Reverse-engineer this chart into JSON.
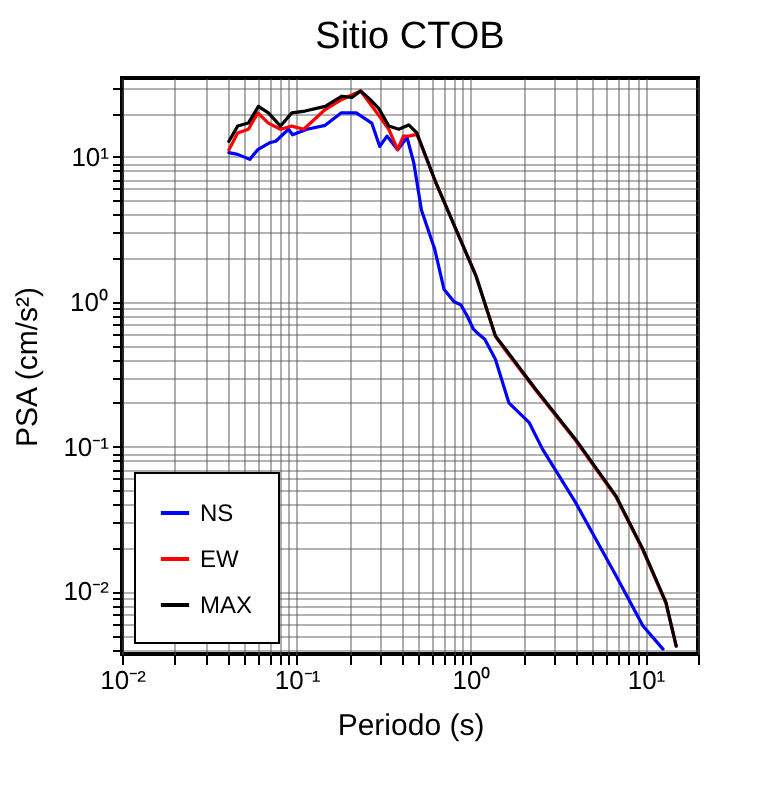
{
  "chart_data": {
    "type": "line",
    "title": "Sitio CTOB",
    "xlabel": "Periodo (s)",
    "ylabel": "PSA (cm/s²)",
    "log": "xy",
    "grid": true,
    "legend": "bottom left",
    "xlim": [
      0.01,
      20
    ],
    "ylim": [
      0.0037,
      35
    ],
    "xticks": [
      {
        "value": 0.01,
        "label": "10⁻²"
      },
      {
        "value": 0.02,
        "label": null
      },
      {
        "value": 0.03,
        "label": null
      },
      {
        "value": 0.04,
        "label": null
      },
      {
        "value": 0.05,
        "label": null
      },
      {
        "value": 0.06,
        "label": null
      },
      {
        "value": 0.07,
        "label": null
      },
      {
        "value": 0.08,
        "label": null
      },
      {
        "value": 0.09,
        "label": null
      },
      {
        "value": 0.1,
        "label": "10⁻¹"
      },
      {
        "value": 0.2,
        "label": null
      },
      {
        "value": 0.3,
        "label": null
      },
      {
        "value": 0.4,
        "label": null
      },
      {
        "value": 0.5,
        "label": null
      },
      {
        "value": 0.6,
        "label": null
      },
      {
        "value": 0.7,
        "label": null
      },
      {
        "value": 0.8,
        "label": null
      },
      {
        "value": 0.9,
        "label": null
      },
      {
        "value": 1,
        "label": "10⁰"
      },
      {
        "value": 2,
        "label": null
      },
      {
        "value": 3,
        "label": null
      },
      {
        "value": 4,
        "label": null
      },
      {
        "value": 5,
        "label": null
      },
      {
        "value": 6,
        "label": null
      },
      {
        "value": 7,
        "label": null
      },
      {
        "value": 8,
        "label": null
      },
      {
        "value": 9,
        "label": null
      },
      {
        "value": 10,
        "label": "10¹"
      },
      {
        "value": 20,
        "label": null
      }
    ],
    "yticks": [
      {
        "value": 0.004,
        "label": null
      },
      {
        "value": 0.005,
        "label": null
      },
      {
        "value": 0.006,
        "label": null
      },
      {
        "value": 0.007,
        "label": null
      },
      {
        "value": 0.008,
        "label": null
      },
      {
        "value": 0.009,
        "label": null
      },
      {
        "value": 0.01,
        "label": "10⁻²"
      },
      {
        "value": 0.02,
        "label": null
      },
      {
        "value": 0.03,
        "label": null
      },
      {
        "value": 0.04,
        "label": null
      },
      {
        "value": 0.05,
        "label": null
      },
      {
        "value": 0.06,
        "label": null
      },
      {
        "value": 0.07,
        "label": null
      },
      {
        "value": 0.08,
        "label": null
      },
      {
        "value": 0.09,
        "label": null
      },
      {
        "value": 0.1,
        "label": "10⁻¹"
      },
      {
        "value": 0.2,
        "label": null
      },
      {
        "value": 0.3,
        "label": null
      },
      {
        "value": 0.4,
        "label": null
      },
      {
        "value": 0.5,
        "label": null
      },
      {
        "value": 0.6,
        "label": null
      },
      {
        "value": 0.7,
        "label": null
      },
      {
        "value": 0.8,
        "label": null
      },
      {
        "value": 0.9,
        "label": null
      },
      {
        "value": 1,
        "label": "10⁰"
      },
      {
        "value": 2,
        "label": null
      },
      {
        "value": 3,
        "label": null
      },
      {
        "value": 4,
        "label": null
      },
      {
        "value": 5,
        "label": null
      },
      {
        "value": 6,
        "label": null
      },
      {
        "value": 7,
        "label": null
      },
      {
        "value": 8,
        "label": null
      },
      {
        "value": 9,
        "label": null
      },
      {
        "value": 10,
        "label": "10¹"
      },
      {
        "value": 20,
        "label": null
      },
      {
        "value": 30,
        "label": null
      }
    ],
    "series": [
      {
        "name": "NS",
        "color": "#0000ff",
        "x": [
          0.041,
          0.046,
          0.054,
          0.06,
          0.07,
          0.076,
          0.09,
          0.095,
          0.115,
          0.146,
          0.18,
          0.22,
          0.27,
          0.3,
          0.33,
          0.38,
          0.43,
          0.47,
          0.52,
          0.62,
          0.7,
          0.8,
          0.876,
          0.95,
          1.03,
          1.1,
          1.2,
          1.38,
          1.65,
          2.15,
          2.57,
          3.98,
          6.77,
          9.66,
          12.6
        ],
        "values": [
          10.7,
          10.4,
          9.6,
          11.2,
          12.5,
          12.8,
          15.5,
          14.2,
          15.5,
          16.5,
          20.1,
          20.1,
          17.1,
          11.8,
          13.9,
          11.2,
          13.6,
          9.1,
          4.3,
          2.3,
          1.22,
          1.0,
          0.95,
          0.8,
          0.65,
          0.6,
          0.55,
          0.4,
          0.2,
          0.147,
          0.096,
          0.041,
          0.0129,
          0.0058,
          0.004
        ]
      },
      {
        "name": "EW",
        "color": "#ff0000",
        "x": [
          0.041,
          0.046,
          0.053,
          0.06,
          0.069,
          0.081,
          0.094,
          0.11,
          0.146,
          0.182,
          0.233,
          0.28,
          0.338,
          0.38,
          0.41,
          0.44,
          0.49,
          0.63,
          0.82,
          1.07,
          1.38,
          1.58,
          2.35,
          3.98,
          6.77,
          9.66,
          13.1,
          15
        ],
        "values": [
          11.2,
          14.6,
          15.5,
          20.1,
          17.1,
          15.5,
          16.3,
          15.5,
          21.2,
          24.9,
          28.5,
          21.2,
          15.5,
          11.2,
          13.9,
          13.9,
          14.3,
          6.6,
          3.16,
          1.5,
          0.58,
          0.46,
          0.245,
          0.11,
          0.045,
          0.0193,
          0.0083,
          0.0042
        ]
      },
      {
        "name": "MAX",
        "color": "#000000",
        "x": [
          0.041,
          0.046,
          0.053,
          0.0605,
          0.069,
          0.081,
          0.094,
          0.112,
          0.146,
          0.182,
          0.208,
          0.233,
          0.264,
          0.296,
          0.338,
          0.386,
          0.44,
          0.49,
          0.63,
          0.82,
          1.07,
          1.38,
          1.58,
          2.35,
          3.98,
          6.77,
          9.66,
          13.1,
          15
        ],
        "values": [
          12.8,
          16.3,
          17.1,
          22.3,
          20.1,
          16.3,
          20.1,
          20.7,
          22.3,
          26.2,
          25.7,
          28.5,
          24.9,
          21.6,
          16.3,
          15.5,
          16.6,
          14.6,
          6.6,
          3.16,
          1.5,
          0.58,
          0.47,
          0.249,
          0.112,
          0.0457,
          0.0196,
          0.0084,
          0.0042
        ]
      }
    ]
  }
}
